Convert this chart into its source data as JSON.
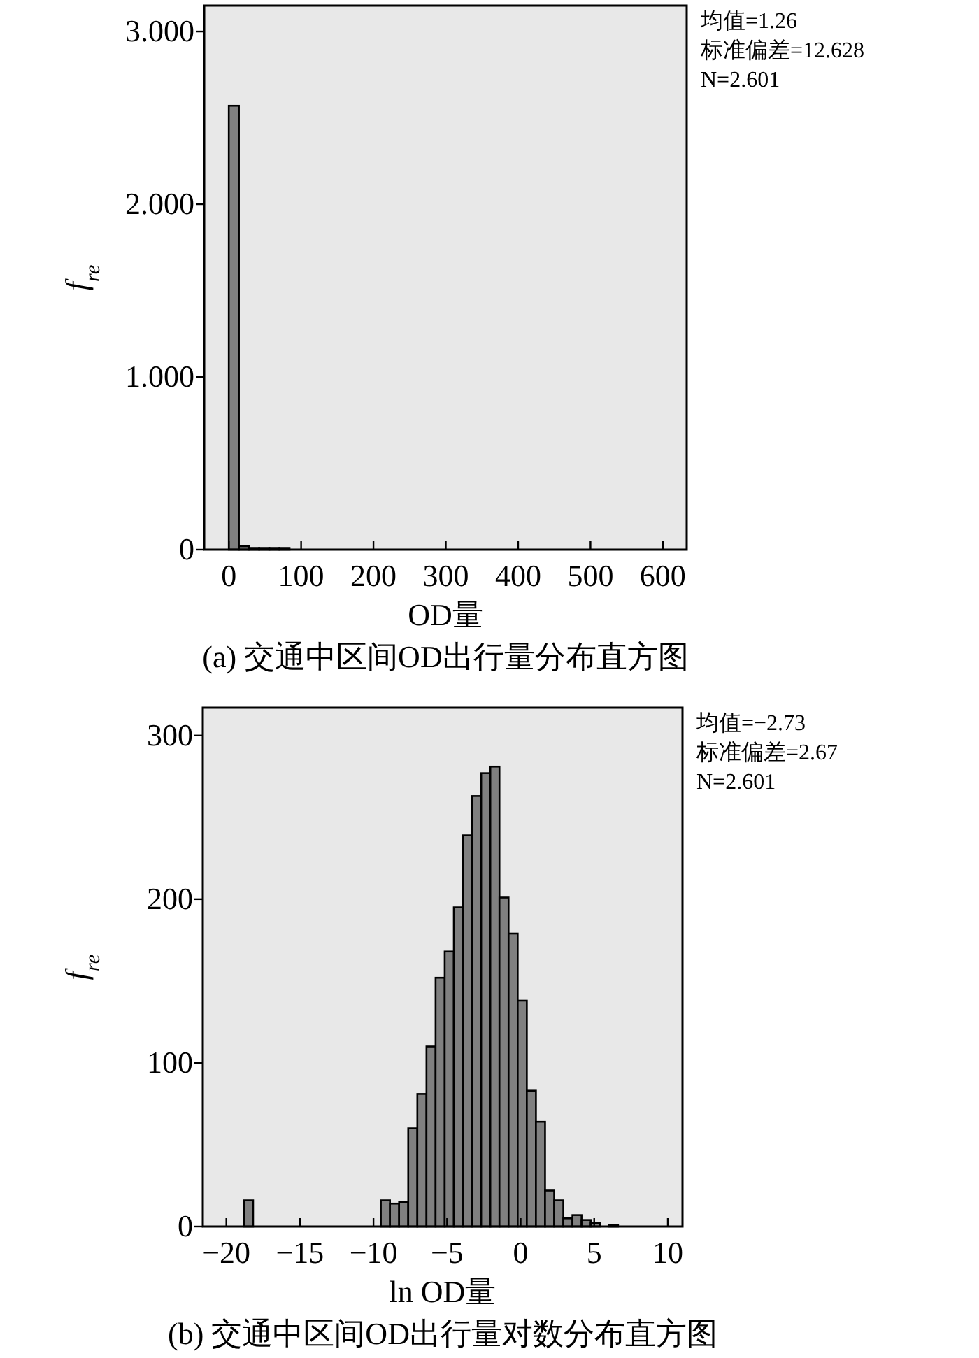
{
  "chart_data": [
    {
      "type": "histogram",
      "title": "(a) 交通中区间OD出行量分布直方图",
      "xlabel": "OD量",
      "ylabel": "f$_{re}$",
      "bins": [
        0,
        14,
        28,
        42,
        56,
        70,
        84
      ],
      "values": [
        2.57,
        0.02,
        0.01,
        0.01,
        0.01,
        0.01
      ],
      "color": "#808080",
      "xlim": [
        -34,
        633
      ],
      "xticks": [
        0,
        100,
        200,
        300,
        400,
        500,
        600
      ],
      "ylim": [
        0,
        3.15
      ],
      "yticks": [
        0,
        {
          "value": 1,
          "label": "1.000"
        },
        {
          "value": 2,
          "label": "2.000"
        },
        {
          "value": 3,
          "label": "3.000"
        }
      ],
      "annotations": [
        "均值=1.26",
        "标准偏差=12.628",
        "N=2.601"
      ]
    },
    {
      "type": "histogram",
      "title": "(b) 交通中区间OD出行量对数分布直方图",
      "xlabel": "ln OD量",
      "ylabel": "f$_{re}$",
      "bins": [
        -18.8,
        -18.18,
        -9.5,
        -8.88,
        -8.26,
        -7.64,
        -7.02,
        -6.4,
        -5.78,
        -5.16,
        -4.54,
        -3.92,
        -3.3,
        -2.68,
        -2.06,
        -1.44,
        -0.82,
        -0.2,
        0.42,
        1.04,
        1.66,
        2.28,
        2.9,
        3.52,
        4.14,
        4.76,
        5.38,
        6.0,
        6.62
      ],
      "values": [
        16,
        0,
        16,
        14,
        15,
        60,
        81,
        110,
        152,
        168,
        195,
        239,
        263,
        277,
        281,
        201,
        179,
        138,
        83,
        64,
        22,
        16,
        5,
        7,
        4,
        2,
        0,
        1
      ],
      "color": "#808080",
      "xlim": [
        -21.6,
        11
      ],
      "xticks": [
        -20,
        -15,
        -10,
        -5,
        0,
        5,
        10
      ],
      "ylim": [
        0,
        317
      ],
      "yticks": [
        0,
        100,
        200,
        300
      ],
      "annotations": [
        "均值=−2.73",
        "标准偏差=2.67",
        "N=2.601"
      ]
    }
  ]
}
